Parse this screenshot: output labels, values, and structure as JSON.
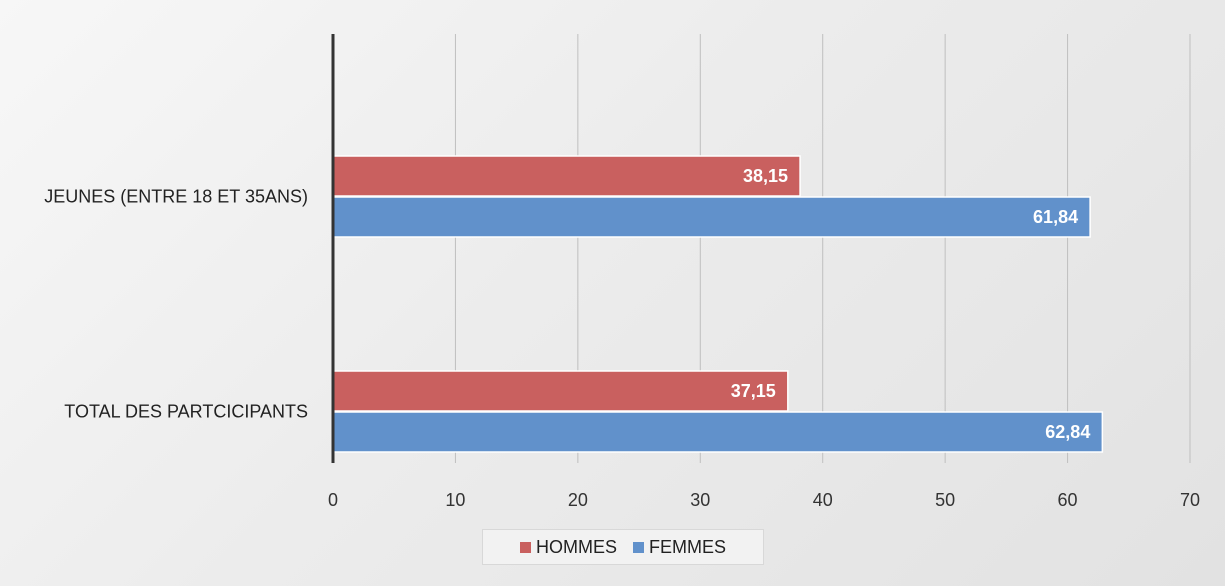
{
  "chart_data": {
    "type": "bar",
    "orientation": "horizontal",
    "categories": [
      "JEUNES (ENTRE 18 ET 35ANS)",
      "TOTAL DES PARTCICIPANTS"
    ],
    "series": [
      {
        "name": "HOMMES",
        "values": [
          38.15,
          37.15
        ],
        "labels": [
          "38,15",
          "37,15"
        ],
        "color": "#c9605f"
      },
      {
        "name": "FEMMES",
        "values": [
          61.84,
          62.84
        ],
        "labels": [
          "61,84",
          "62,84"
        ],
        "color": "#6191cb"
      }
    ],
    "xlim": [
      0,
      70
    ],
    "xticks": [
      "0",
      "10",
      "20",
      "30",
      "40",
      "50",
      "60",
      "70"
    ],
    "grid": true,
    "legend_position": "bottom"
  }
}
